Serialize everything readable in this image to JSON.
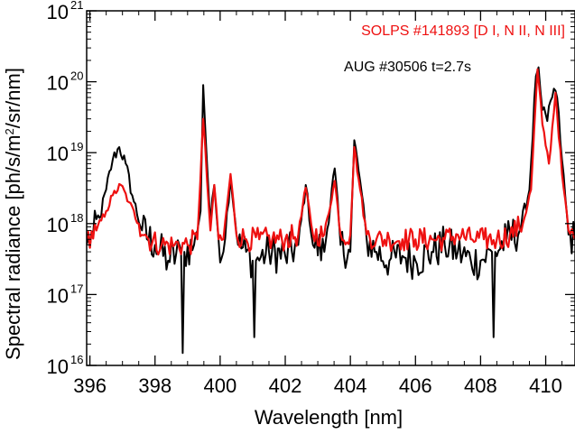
{
  "chart_data": {
    "type": "line",
    "title": "",
    "xlabel": "Wavelength [nm]",
    "ylabel_main": "Spectral radiance [ph/s/m",
    "ylabel_sup": "2",
    "ylabel_end": "/sr/nm]",
    "xlim": [
      395.9,
      410.9
    ],
    "ylim": [
      1e+16,
      1e+21
    ],
    "yscale": "log",
    "xticks": [
      396,
      398,
      400,
      402,
      404,
      406,
      408,
      410
    ],
    "yticks": [
      {
        "base": "10",
        "exp": "16",
        "value": 1e+16
      },
      {
        "base": "10",
        "exp": "17",
        "value": 1e+17
      },
      {
        "base": "10",
        "exp": "18",
        "value": 1e+18
      },
      {
        "base": "10",
        "exp": "19",
        "value": 1e+19
      },
      {
        "base": "10",
        "exp": "20",
        "value": 1e+20
      },
      {
        "base": "10",
        "exp": "21",
        "value": 1e+21
      }
    ],
    "legend_placement": "top-right",
    "grid": false,
    "baseline_log10": 17.7,
    "series": [
      {
        "name": "AUG #30506 t=2.7s",
        "color": "#000000",
        "x": [
          395.9,
          396.1,
          396.3,
          396.5,
          396.7,
          396.9,
          397.1,
          397.3,
          397.6,
          398.0,
          398.4,
          398.8,
          398.85,
          398.9,
          399.2,
          399.4,
          399.48,
          399.56,
          399.7,
          399.82,
          399.95,
          400.1,
          400.32,
          400.55,
          400.8,
          401.0,
          401.05,
          401.1,
          401.5,
          402.0,
          402.4,
          402.63,
          402.85,
          403.2,
          403.52,
          403.7,
          404.0,
          404.12,
          404.3,
          404.5,
          404.8,
          405.2,
          405.6,
          406.0,
          406.5,
          406.9,
          407.3,
          407.7,
          408.0,
          408.35,
          408.4,
          408.45,
          408.8,
          409.2,
          409.5,
          409.7,
          409.78,
          409.9,
          410.05,
          410.25,
          410.35,
          410.5,
          410.7,
          410.9
        ],
        "y": [
          5e+17,
          7e+17,
          1.2e+18,
          3e+18,
          8e+18,
          1.2e+19,
          7e+18,
          2.5e+18,
          8e+17,
          5e+17,
          3e+17,
          4e+17,
          1.5e+16,
          4e+17,
          5e+17,
          1.5e+18,
          9e+19,
          1.5e+19,
          1e+18,
          3.5e+18,
          6e+17,
          4e+17,
          4.5e+18,
          5e+17,
          4e+17,
          3e+17,
          2.5e+16,
          3e+17,
          4e+17,
          3.5e+17,
          5e+17,
          3.5e+18,
          5e+17,
          4e+17,
          6e+18,
          5e+17,
          4e+17,
          1.5e+19,
          4e+18,
          6e+17,
          4e+17,
          3e+17,
          3.5e+17,
          3e+17,
          4e+17,
          5e+17,
          4e+17,
          3e+17,
          3e+17,
          4e+17,
          2.5e+16,
          4e+17,
          6e+17,
          8e+17,
          3e+18,
          1.2e+20,
          1.6e+20,
          4e+19,
          2.8e+19,
          8e+19,
          6e+19,
          8e+18,
          7e+17,
          6e+17
        ]
      },
      {
        "name": "SOLPS #141893 [D I, N II, N III]",
        "color": "#ee1111",
        "x": [
          395.9,
          396.2,
          396.5,
          396.7,
          396.95,
          397.2,
          397.5,
          397.8,
          398.2,
          398.6,
          399.0,
          399.3,
          399.48,
          399.6,
          399.7,
          399.82,
          399.95,
          400.1,
          400.32,
          400.5,
          400.8,
          401.2,
          401.6,
          402.0,
          402.4,
          402.63,
          402.85,
          403.2,
          403.52,
          403.7,
          404.0,
          404.12,
          404.3,
          404.5,
          404.8,
          405.2,
          405.6,
          406.0,
          406.5,
          406.9,
          407.3,
          407.7,
          408.1,
          408.5,
          408.9,
          409.3,
          409.55,
          409.75,
          409.9,
          410.1,
          410.3,
          410.5,
          410.7,
          410.9
        ],
        "y": [
          6e+17,
          8e+17,
          1.5e+18,
          2.5e+18,
          3.5e+18,
          2e+18,
          1e+18,
          6e+17,
          5e+17,
          5e+17,
          5e+17,
          6e+17,
          3e+19,
          4e+18,
          8e+17,
          3.5e+18,
          6e+17,
          6e+17,
          5e+18,
          7e+17,
          6e+17,
          6e+17,
          6e+17,
          6e+17,
          7e+17,
          3.2e+18,
          7e+17,
          7e+17,
          4e+18,
          7e+17,
          7e+17,
          1.2e+19,
          3e+18,
          7e+17,
          6e+17,
          6e+17,
          6e+17,
          6e+17,
          6e+17,
          6e+17,
          7e+17,
          6e+17,
          6e+17,
          6e+17,
          7e+17,
          1e+18,
          3e+18,
          1.5e+20,
          2.5e+19,
          7e+18,
          7e+19,
          5e+18,
          8e+17,
          6e+17
        ]
      }
    ]
  }
}
